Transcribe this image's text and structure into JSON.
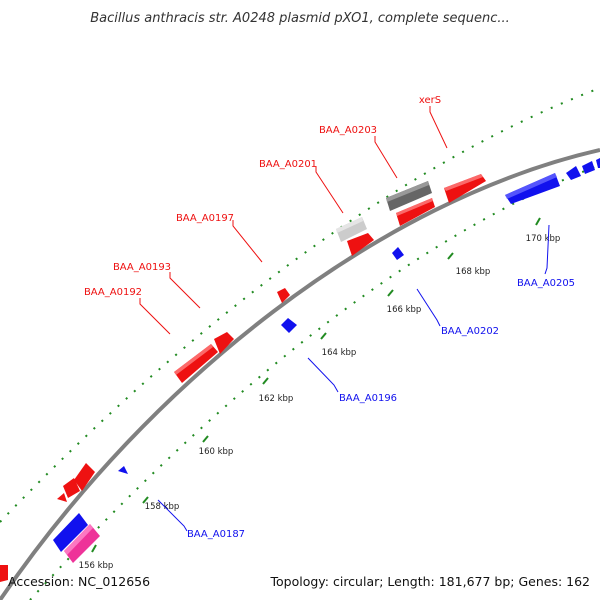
{
  "title": "Bacillus anthracis str. A0248 plasmid pXO1, complete sequenc...",
  "footer": {
    "accession": "Accession: NC_012656",
    "summary": "Topology: circular; Length: 181,677 bp; Genes: 162"
  },
  "colors": {
    "forward_gene": "#ee1111",
    "reverse_gene": "#1111ee",
    "pseudo_gene": "#666666",
    "rna_gene": "#cccccc",
    "pink_gene": "#ee3399",
    "backbone": "#808080",
    "tick_mark": "#228b22"
  },
  "tick_labels": [
    "156 kbp",
    "158 kbp",
    "160 kbp",
    "162 kbp",
    "164 kbp",
    "166 kbp",
    "168 kbp",
    "170 kbp"
  ],
  "gene_labels": {
    "red": [
      "xerS",
      "BAA_A0203",
      "BAA_A0201",
      "BAA_A0197",
      "BAA_A0193",
      "BAA_A0192"
    ],
    "blue": [
      "BAA_A0187",
      "BAA_A0196",
      "BAA_A0202",
      "BAA_A0205"
    ]
  }
}
